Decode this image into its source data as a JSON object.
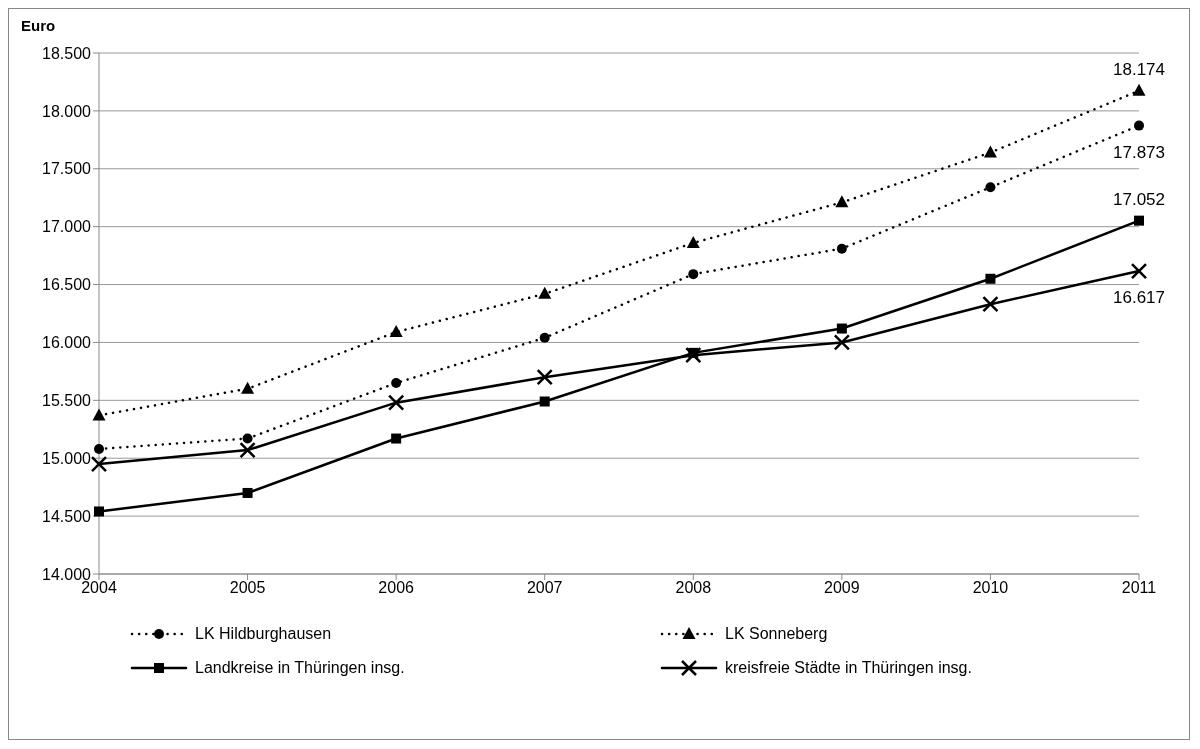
{
  "chart_data": {
    "type": "line",
    "ylabel": "Euro",
    "categories": [
      "2004",
      "2005",
      "2006",
      "2007",
      "2008",
      "2009",
      "2010",
      "2011"
    ],
    "ylim": [
      14000,
      18500
    ],
    "yticks": [
      {
        "value": 14000,
        "label": "14.000"
      },
      {
        "value": 14500,
        "label": "14.500"
      },
      {
        "value": 15000,
        "label": "15.000"
      },
      {
        "value": 15500,
        "label": "15.500"
      },
      {
        "value": 16000,
        "label": "16.000"
      },
      {
        "value": 16500,
        "label": "16.500"
      },
      {
        "value": 17000,
        "label": "17.000"
      },
      {
        "value": 17500,
        "label": "17.500"
      },
      {
        "value": 18000,
        "label": "18.000"
      },
      {
        "value": 18500,
        "label": "18.500"
      }
    ],
    "grid": "y",
    "legend": "bottom",
    "series": [
      {
        "name": "LK Hildburghausen",
        "color": "#000000",
        "marker": "circle",
        "line_style": "dotted",
        "values": [
          15080,
          15170,
          15650,
          16040,
          16590,
          16810,
          17340,
          17873
        ],
        "value_labels": [
          null,
          null,
          null,
          null,
          null,
          null,
          null,
          "17.873"
        ]
      },
      {
        "name": "LK Sonneberg",
        "color": "#000000",
        "marker": "triangle",
        "line_style": "dotted",
        "values": [
          15370,
          15600,
          16090,
          16420,
          16860,
          17210,
          17640,
          18174
        ],
        "value_labels": [
          null,
          null,
          null,
          null,
          null,
          null,
          null,
          "18.174"
        ]
      },
      {
        "name": "Landkreise in Thüringen  insg.",
        "color": "#000000",
        "marker": "square",
        "line_style": "solid",
        "values": [
          14540,
          14700,
          15170,
          15490,
          15910,
          16120,
          16550,
          17052
        ],
        "value_labels": [
          null,
          null,
          null,
          null,
          null,
          null,
          null,
          "17.052"
        ]
      },
      {
        "name": "kreisfreie Städte in Thüringen  insg.",
        "color": "#000000",
        "marker": "cross",
        "line_style": "solid",
        "values": [
          14950,
          15070,
          15480,
          15700,
          15890,
          16000,
          16330,
          16617
        ],
        "value_labels": [
          null,
          null,
          null,
          null,
          null,
          null,
          null,
          "16.617"
        ]
      }
    ]
  }
}
